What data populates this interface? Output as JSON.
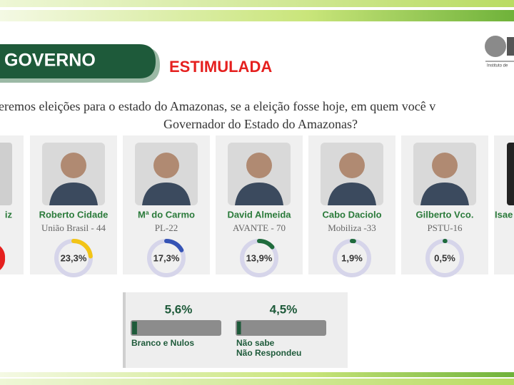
{
  "header": {
    "title": "GOVERNO",
    "subtitle": "ESTIMULADA",
    "logo_caption": "Instituto de"
  },
  "question": [
    "eremos eleições para o estado do Amazonas, se a eleição fosse hoje, em quem você v",
    "Governador do Estado do Amazonas?"
  ],
  "partial_candidates": [
    {
      "name": "iz"
    },
    {
      "name": "Isae"
    }
  ],
  "candidates": [
    {
      "name": "Roberto Cidade",
      "party": "União Brasil - 44",
      "value": 23.3,
      "label": "23,3%",
      "color": "#f2c416"
    },
    {
      "name": "Mª do Carmo",
      "party": "PL-22",
      "value": 17.3,
      "label": "17,3%",
      "color": "#3553b5"
    },
    {
      "name": "David Almeida",
      "party": "AVANTE - 70",
      "value": 13.9,
      "label": "13,9%",
      "color": "#1f6b3c"
    },
    {
      "name": "Cabo Daciolo",
      "party": "Mobiliza -33",
      "value": 1.9,
      "label": "1,9%",
      "color": "#1f6b3c"
    },
    {
      "name": "Gilberto Vco.",
      "party": "PSTU-16",
      "value": 0.5,
      "label": "0,5%",
      "color": "#1f6b3c"
    }
  ],
  "others": [
    {
      "value": 5.6,
      "label": "5,6%",
      "lines": [
        "Branco e Nulos"
      ]
    },
    {
      "value": 4.5,
      "label": "4,5%",
      "lines": [
        "Não sabe",
        "Não Respondeu"
      ]
    }
  ]
}
